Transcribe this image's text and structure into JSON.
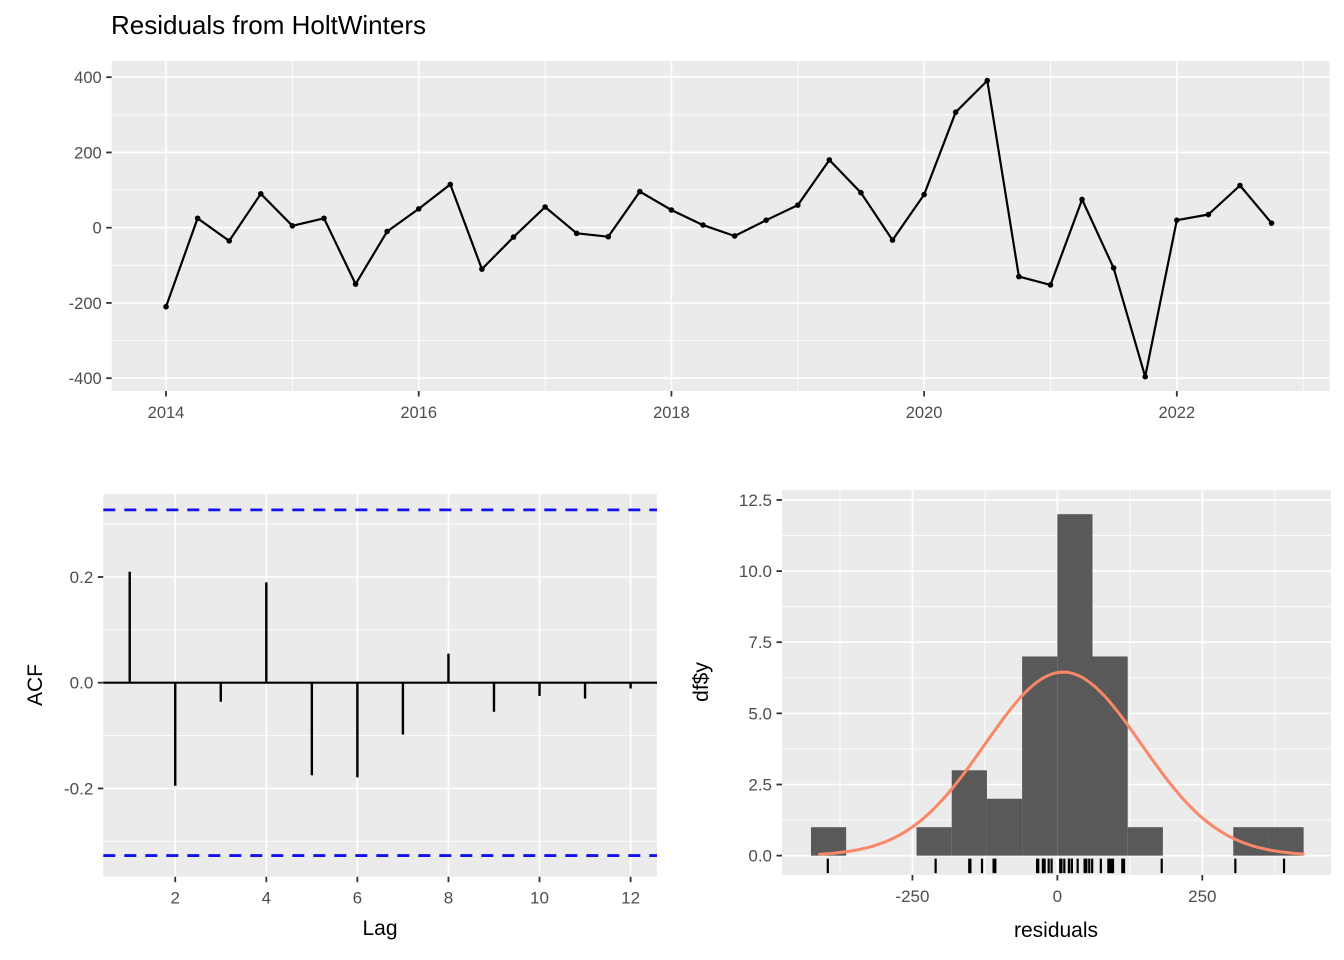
{
  "title": "Residuals from HoltWinters",
  "colors": {
    "panel_bg": "#EBEBEB",
    "grid": "#FFFFFF",
    "series_line": "#000000",
    "point": "#000000",
    "confidence_line": "#1212EE",
    "hist_fill": "#595959",
    "normal_curve": "#FA8767",
    "axis_text": "#4D4D4D",
    "tick_mark": "#333333",
    "title_text": "#000000"
  },
  "chart_data": [
    {
      "id": "residuals-series",
      "type": "line",
      "title": "Residuals from HoltWinters",
      "xlabel": "",
      "ylabel": "",
      "x_start": 2014,
      "x_step": 0.25,
      "values": [
        -210,
        25,
        -35,
        90,
        5,
        25,
        -150,
        -10,
        50,
        115,
        -110,
        -25,
        55,
        -15,
        -24,
        96,
        47,
        7,
        -22,
        20,
        60,
        180,
        93,
        -33,
        88,
        307,
        391,
        -130,
        -152,
        75,
        -107,
        -396,
        20,
        35,
        112,
        12
      ],
      "x_ticks": [
        2014,
        2016,
        2018,
        2020,
        2022
      ],
      "x_tick_labels": [
        "2014",
        "2016",
        "2018",
        "2020",
        "2022"
      ],
      "x_minor": [
        2015,
        2017,
        2019,
        2021,
        2023
      ],
      "y_ticks": [
        -400,
        -200,
        0,
        200,
        400
      ],
      "y_tick_labels": [
        "-400",
        "-200",
        "0",
        "200",
        "400"
      ],
      "y_minor": [
        -300,
        -100,
        100,
        300
      ],
      "xlim": [
        2013.57,
        2023.21
      ],
      "ylim": [
        -434,
        443
      ],
      "grid": true,
      "legend": "none"
    },
    {
      "id": "acf",
      "type": "stem",
      "title": "",
      "xlabel": "Lag",
      "ylabel": "ACF",
      "lags": [
        1,
        2,
        3,
        4,
        5,
        6,
        7,
        8,
        9,
        10,
        11,
        12
      ],
      "values": [
        0.21,
        -0.195,
        -0.036,
        0.19,
        -0.175,
        -0.179,
        -0.098,
        0.055,
        -0.055,
        -0.025,
        -0.03,
        -0.011
      ],
      "conf_level": 0.327,
      "x_ticks": [
        2,
        4,
        6,
        8,
        10,
        12
      ],
      "x_tick_labels": [
        "2",
        "4",
        "6",
        "8",
        "10",
        "12"
      ],
      "x_minor": [],
      "y_ticks": [
        -0.2,
        0,
        0.2
      ],
      "y_tick_labels": [
        "-0.2",
        "0.0",
        "0.2"
      ],
      "y_minor": [
        -0.3,
        -0.1,
        0.1,
        0.3
      ],
      "xlim": [
        0.42,
        12.58
      ],
      "ylim": [
        -0.367,
        0.357
      ],
      "grid": true,
      "legend": "none"
    },
    {
      "id": "residuals-histogram",
      "type": "histogram",
      "title": "",
      "xlabel": "residuals",
      "ylabel": "df$y",
      "bin_start": -425,
      "bin_width": 60.7,
      "counts": [
        1,
        0,
        0,
        1,
        3,
        2,
        7,
        12,
        7,
        1,
        0,
        0,
        1,
        1
      ],
      "normal_curve": {
        "mean": 10,
        "sd": 135,
        "peak": 6.45
      },
      "rug_values": [
        -210,
        25,
        -35,
        90,
        5,
        25,
        -150,
        -10,
        50,
        115,
        -110,
        -25,
        55,
        -15,
        -24,
        96,
        47,
        7,
        -22,
        20,
        60,
        180,
        93,
        -33,
        88,
        307,
        391,
        -130,
        -152,
        75,
        -107,
        -396,
        20,
        35,
        112,
        12
      ],
      "x_ticks": [
        -250,
        0,
        250
      ],
      "x_tick_labels": [
        "-250",
        "0",
        "250"
      ],
      "x_minor": [
        -375,
        -125,
        125,
        375
      ],
      "y_ticks": [
        0,
        2.5,
        5,
        7.5,
        10,
        12.5
      ],
      "y_tick_labels": [
        "0.0",
        "2.5",
        "5.0",
        "7.5",
        "10.0",
        "12.5"
      ],
      "y_minor": [
        1.25,
        3.75,
        6.25,
        8.75,
        11.25
      ],
      "xlim": [
        -475,
        472
      ],
      "ylim": [
        -0.68,
        12.85
      ],
      "grid": true,
      "legend": "none"
    }
  ]
}
